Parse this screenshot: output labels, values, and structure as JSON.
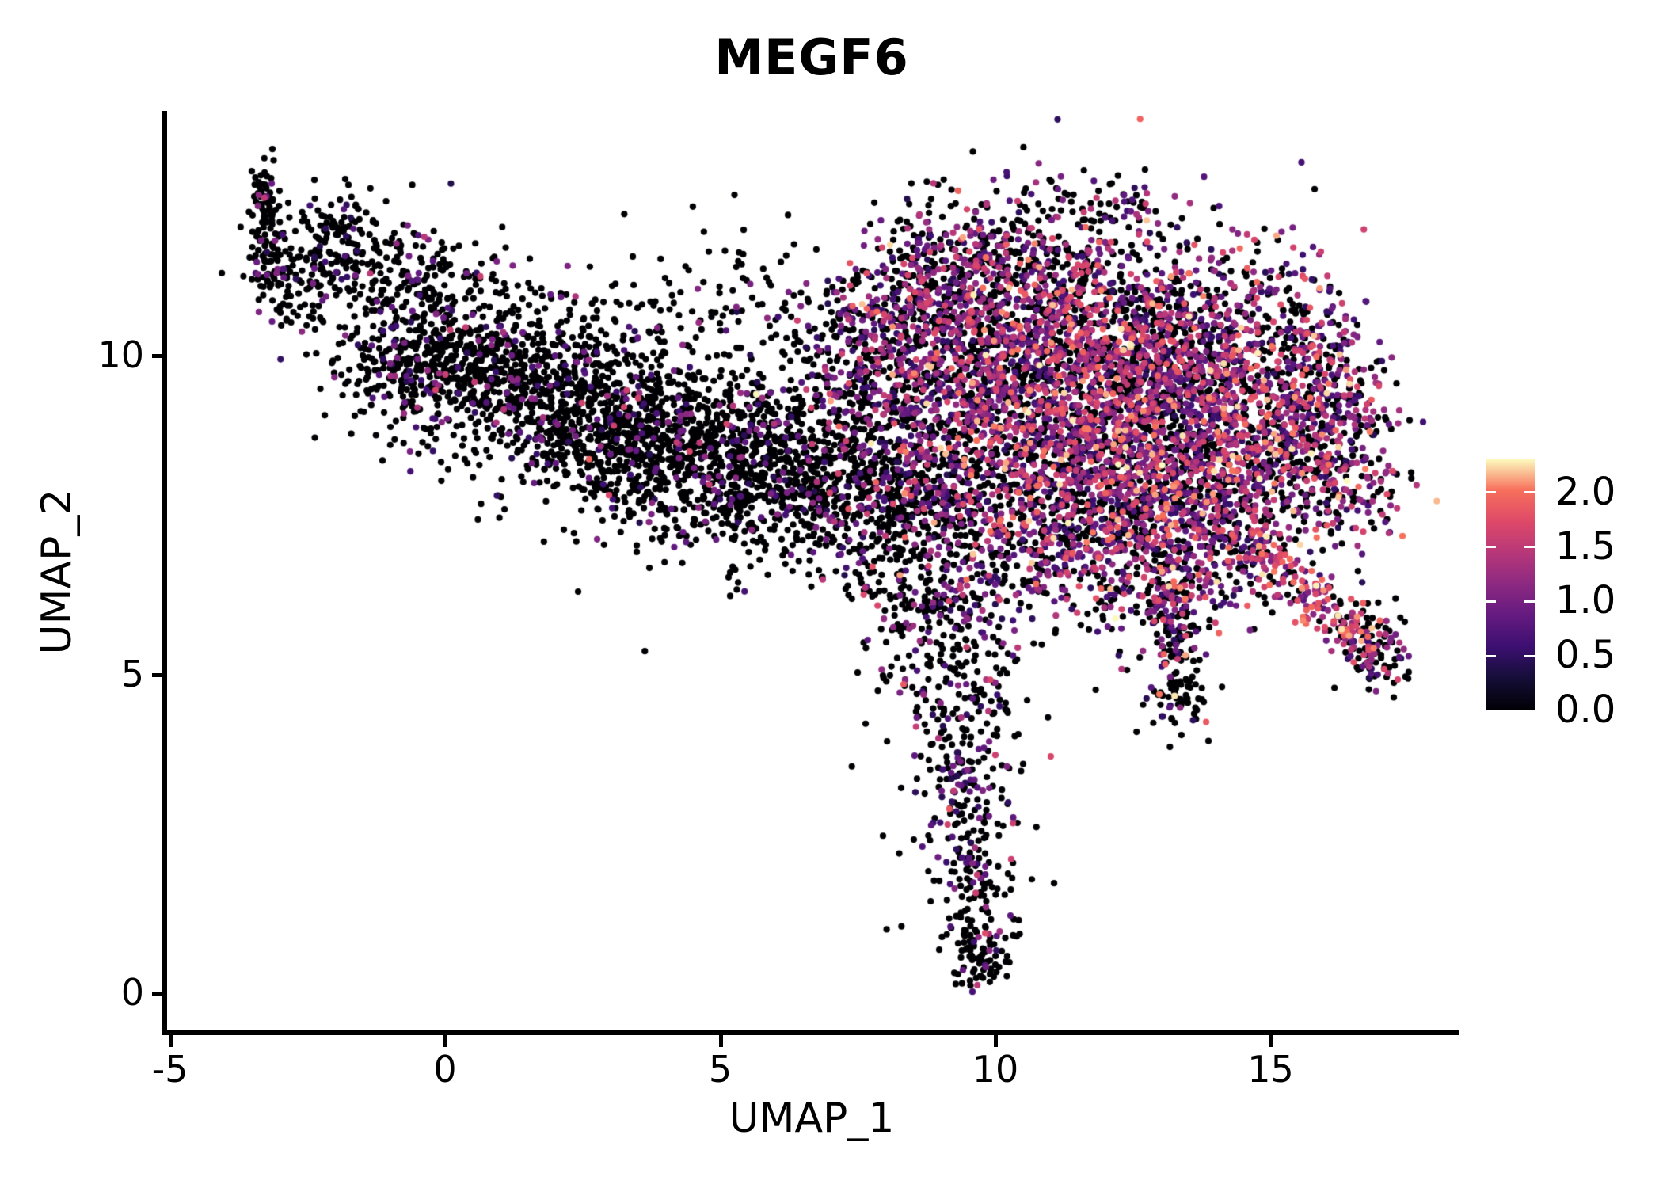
{
  "title": "MEGF6",
  "chart_data": {
    "type": "scatter",
    "title": "MEGF6",
    "xlabel": "UMAP_1",
    "ylabel": "UMAP_2",
    "x_tick_labels": [
      "-5",
      "0",
      "5",
      "10",
      "15"
    ],
    "x_tick_values": [
      -5,
      0,
      5,
      10,
      15
    ],
    "y_tick_labels": [
      "0",
      "5",
      "10"
    ],
    "y_tick_values": [
      0,
      5,
      10
    ],
    "xlim": [
      -5.1,
      18.4
    ],
    "ylim": [
      -0.6,
      13.8
    ],
    "grid": false,
    "point_color_zero": "#000004",
    "legend": {
      "position": "right",
      "tick_labels": [
        "2.0",
        "1.5",
        "1.0",
        "0.5",
        "0.0"
      ],
      "tick_values": [
        2.0,
        1.5,
        1.0,
        0.5,
        0.0
      ],
      "vmin": 0.0,
      "vmax": 2.31,
      "colormap": "magma",
      "stops": [
        [
          0.0,
          "#000004"
        ],
        [
          0.125,
          "#140e36"
        ],
        [
          0.25,
          "#3b0f70"
        ],
        [
          0.375,
          "#641a80"
        ],
        [
          0.5,
          "#8c2981"
        ],
        [
          0.625,
          "#b73779"
        ],
        [
          0.75,
          "#de4968"
        ],
        [
          0.875,
          "#f7705c"
        ],
        [
          1.0,
          "#fcfdbf"
        ]
      ]
    },
    "points": {
      "seed": 7,
      "radius_px": 4.1,
      "total_approx": 11400,
      "expression_profiles": {
        "low": {
          "p_zero": 0.865,
          "bands": [
            [
              0.4,
              1.25,
              0.92
            ],
            [
              1.25,
              1.7,
              0.07
            ],
            [
              1.7,
              2.0,
              0.01
            ]
          ]
        },
        "lowmid": {
          "p_zero": 0.74,
          "bands": [
            [
              0.4,
              1.25,
              0.83
            ],
            [
              1.25,
              1.7,
              0.14
            ],
            [
              1.7,
              2.1,
              0.03
            ]
          ]
        },
        "mid": {
          "p_zero": 0.56,
          "bands": [
            [
              0.4,
              1.25,
              0.7
            ],
            [
              1.25,
              1.7,
              0.22
            ],
            [
              1.7,
              2.1,
              0.06
            ],
            [
              2.1,
              2.31,
              0.02
            ]
          ]
        },
        "high": {
          "p_zero": 0.4,
          "bands": [
            [
              0.4,
              1.25,
              0.58
            ],
            [
              1.25,
              1.7,
              0.28
            ],
            [
              1.7,
              2.1,
              0.11
            ],
            [
              2.1,
              2.31,
              0.03
            ]
          ]
        },
        "pink": {
          "p_zero": 0.22,
          "bands": [
            [
              0.5,
              1.25,
              0.35
            ],
            [
              1.25,
              1.8,
              0.45
            ],
            [
              1.8,
              2.1,
              0.17
            ],
            [
              2.1,
              2.31,
              0.03
            ]
          ]
        },
        "black": {
          "p_zero": 0.9,
          "bands": [
            [
              0.4,
              1.1,
              1.0
            ]
          ]
        }
      },
      "clusters": [
        {
          "name": "left-wing-tip",
          "x": -3.34,
          "y": 12.6,
          "sx": 0.12,
          "sy": 0.25,
          "n": 40,
          "profile": "low"
        },
        {
          "name": "left-wing-tip-column",
          "x": -3.25,
          "y": 11.85,
          "sx": 0.2,
          "sy": 0.35,
          "n": 70,
          "profile": "low"
        },
        {
          "name": "left-wing-neck",
          "x": -2.76,
          "y": 11.11,
          "sx": 0.4,
          "sy": 0.4,
          "n": 110,
          "profile": "low"
        },
        {
          "name": "left-wing-top-clump",
          "x": -1.83,
          "y": 11.85,
          "sx": 0.46,
          "sy": 0.32,
          "n": 130,
          "profile": "low"
        },
        {
          "name": "left-wing-top-ridge",
          "x": -0.6,
          "y": 11.23,
          "sx": 0.65,
          "sy": 0.37,
          "n": 130,
          "profile": "low"
        },
        {
          "name": "left-wing-band-1",
          "x": -0.6,
          "y": 9.99,
          "sx": 0.79,
          "sy": 0.56,
          "n": 280,
          "profile": "low"
        },
        {
          "name": "left-wing-band-2",
          "x": 0.69,
          "y": 9.74,
          "sx": 0.86,
          "sy": 0.62,
          "n": 340,
          "profile": "low"
        },
        {
          "name": "left-wing-band-3",
          "x": 1.99,
          "y": 9.3,
          "sx": 0.94,
          "sy": 0.68,
          "n": 400,
          "profile": "low"
        },
        {
          "name": "left-wing-band-4",
          "x": 3.28,
          "y": 8.81,
          "sx": 1.01,
          "sy": 0.68,
          "n": 450,
          "profile": "low"
        },
        {
          "name": "left-wing-band-5",
          "x": 4.58,
          "y": 8.5,
          "sx": 1.08,
          "sy": 0.68,
          "n": 480,
          "profile": "low"
        },
        {
          "name": "left-wing-band-6",
          "x": 5.87,
          "y": 8.19,
          "sx": 1.08,
          "sy": 0.68,
          "n": 420,
          "profile": "low"
        },
        {
          "name": "left-wing-band-7",
          "x": 7.17,
          "y": 7.88,
          "sx": 1.01,
          "sy": 0.68,
          "n": 300,
          "profile": "low"
        },
        {
          "name": "left-wing-upper-fill",
          "x": 1.99,
          "y": 10.55,
          "sx": 2.01,
          "sy": 0.68,
          "n": 140,
          "profile": "low"
        },
        {
          "name": "left-wing-upper-right",
          "x": 5.58,
          "y": 10.61,
          "sx": 0.86,
          "sy": 0.56,
          "n": 60,
          "profile": "low"
        },
        {
          "name": "bridge-sparse",
          "x": 7.02,
          "y": 9.61,
          "sx": 1.15,
          "sy": 0.87,
          "n": 90,
          "profile": "low"
        },
        {
          "name": "bridge-right",
          "x": 8.89,
          "y": 9.12,
          "sx": 0.86,
          "sy": 0.75,
          "n": 140,
          "profile": "mid"
        },
        {
          "name": "bridge-lower",
          "x": 8.46,
          "y": 7.76,
          "sx": 0.86,
          "sy": 0.62,
          "n": 180,
          "profile": "lowmid"
        },
        {
          "name": "tail-top",
          "x": 8.46,
          "y": 6.88,
          "sx": 0.86,
          "sy": 0.62,
          "n": 200,
          "profile": "lowmid"
        },
        {
          "name": "tail-upper",
          "x": 9.04,
          "y": 5.64,
          "sx": 0.65,
          "sy": 0.75,
          "n": 160,
          "profile": "lowmid"
        },
        {
          "name": "tail-mid",
          "x": 9.32,
          "y": 4.15,
          "sx": 0.5,
          "sy": 0.68,
          "n": 130,
          "profile": "lowmid"
        },
        {
          "name": "tail-lower",
          "x": 9.54,
          "y": 2.66,
          "sx": 0.43,
          "sy": 0.68,
          "n": 120,
          "profile": "lowmid"
        },
        {
          "name": "tail-bottom",
          "x": 9.68,
          "y": 1.29,
          "sx": 0.36,
          "sy": 0.55,
          "n": 90,
          "profile": "lowmid"
        },
        {
          "name": "tail-tip",
          "x": 9.76,
          "y": 0.48,
          "sx": 0.26,
          "sy": 0.25,
          "n": 45,
          "profile": "black"
        },
        {
          "name": "right-core-nw",
          "x": 9.9,
          "y": 10.24,
          "sx": 1.29,
          "sy": 0.86,
          "n": 700,
          "profile": "high"
        },
        {
          "name": "right-core-n",
          "x": 12.06,
          "y": 10.36,
          "sx": 1.29,
          "sy": 0.86,
          "n": 750,
          "profile": "high"
        },
        {
          "name": "right-core-ne",
          "x": 13.93,
          "y": 9.99,
          "sx": 1.15,
          "sy": 0.86,
          "n": 650,
          "profile": "high"
        },
        {
          "name": "right-core-w",
          "x": 10.62,
          "y": 8.62,
          "sx": 1.44,
          "sy": 0.92,
          "n": 850,
          "profile": "high"
        },
        {
          "name": "right-core-c",
          "x": 12.78,
          "y": 8.5,
          "sx": 1.29,
          "sy": 0.86,
          "n": 800,
          "profile": "high"
        },
        {
          "name": "right-core-e",
          "x": 14.94,
          "y": 8.62,
          "sx": 1.01,
          "sy": 0.8,
          "n": 500,
          "profile": "high"
        },
        {
          "name": "right-core-sw",
          "x": 11.34,
          "y": 7.01,
          "sx": 1.29,
          "sy": 0.74,
          "n": 550,
          "profile": "high"
        },
        {
          "name": "right-core-se",
          "x": 13.5,
          "y": 7.13,
          "sx": 1.01,
          "sy": 0.68,
          "n": 400,
          "profile": "high"
        },
        {
          "name": "right-top-arc",
          "x": 9.61,
          "y": 11.48,
          "sx": 1.01,
          "sy": 0.55,
          "n": 300,
          "profile": "mid"
        },
        {
          "name": "right-left-edge",
          "x": 7.74,
          "y": 9.99,
          "sx": 0.79,
          "sy": 0.75,
          "n": 250,
          "profile": "mid"
        },
        {
          "name": "right-upper-left-rim",
          "x": 8.46,
          "y": 10.86,
          "sx": 0.58,
          "sy": 0.5,
          "n": 110,
          "profile": "mid"
        },
        {
          "name": "right-top-rim",
          "x": 11.8,
          "y": 12.45,
          "sx": 0.9,
          "sy": 0.3,
          "n": 70,
          "profile": "lowmid"
        },
        {
          "name": "right-east-edge",
          "x": 15.94,
          "y": 9.61,
          "sx": 0.65,
          "sy": 0.75,
          "n": 220,
          "profile": "high"
        },
        {
          "name": "right-east-lower",
          "x": 16.37,
          "y": 8.12,
          "sx": 0.58,
          "sy": 0.62,
          "n": 150,
          "profile": "high"
        },
        {
          "name": "spike-upper",
          "x": 13.21,
          "y": 5.76,
          "sx": 0.32,
          "sy": 0.56,
          "n": 130,
          "profile": "mid"
        },
        {
          "name": "spike-tip",
          "x": 13.35,
          "y": 4.65,
          "sx": 0.23,
          "sy": 0.27,
          "n": 60,
          "profile": "black"
        },
        {
          "name": "appendage-1",
          "x": 14.79,
          "y": 6.88,
          "sx": 0.26,
          "sy": 0.22,
          "n": 40,
          "profile": "pink"
        },
        {
          "name": "appendage-2",
          "x": 15.29,
          "y": 6.51,
          "sx": 0.26,
          "sy": 0.22,
          "n": 40,
          "profile": "pink"
        },
        {
          "name": "appendage-3",
          "x": 15.8,
          "y": 6.14,
          "sx": 0.26,
          "sy": 0.22,
          "n": 40,
          "profile": "pink"
        },
        {
          "name": "appendage-4",
          "x": 16.3,
          "y": 5.76,
          "sx": 0.26,
          "sy": 0.22,
          "n": 40,
          "profile": "pink"
        },
        {
          "name": "appendage-5",
          "x": 16.66,
          "y": 5.52,
          "sx": 0.26,
          "sy": 0.22,
          "n": 40,
          "profile": "pink"
        },
        {
          "name": "appendage-tip",
          "x": 16.88,
          "y": 5.33,
          "sx": 0.32,
          "sy": 0.34,
          "n": 90,
          "profile": "mid"
        },
        {
          "name": "outliers-below",
          "x": 9.0,
          "y": 4.5,
          "sx": 0.9,
          "sy": 1.6,
          "n": 25,
          "profile": "black"
        },
        {
          "name": "outliers-top-gap",
          "x": 6.5,
          "y": 11.2,
          "sx": 1.5,
          "sy": 0.6,
          "n": 20,
          "profile": "black"
        }
      ]
    }
  }
}
